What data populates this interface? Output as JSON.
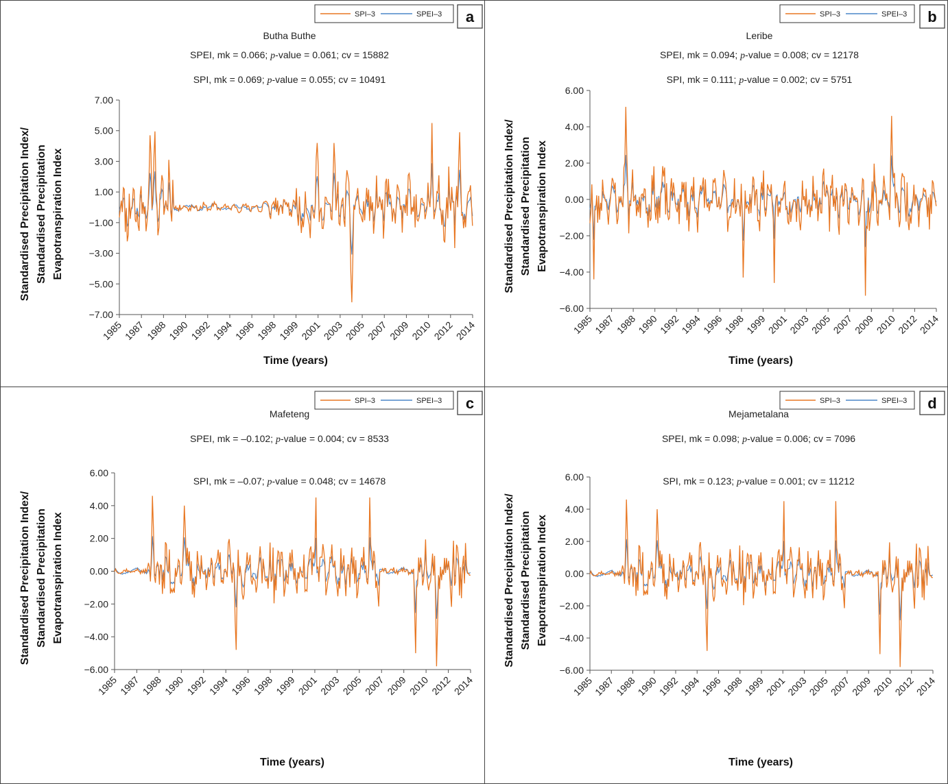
{
  "colors": {
    "spi": "#E87722",
    "spei": "#4A86C8",
    "axis": "#555555"
  },
  "chart_data": [
    {
      "type": "line",
      "letter": "a",
      "title": "Butha Buthe",
      "stat_lines": [
        {
          "pre": "SPEI, mk = 0.066; ",
          "p": "p",
          "post": "-value = 0.061; cv = 15882"
        },
        {
          "pre": "SPI, mk = 0.069; ",
          "p": "p",
          "post": "-value = 0.055; cv = 10491"
        }
      ],
      "ylabel": [
        "Standardised Precipitation Index/",
        "Standardised Precipitation",
        "Evapotranspiration Index"
      ],
      "xlabel": "Time (years)",
      "ylim": [
        -7,
        7
      ],
      "yticks": [
        "7.00",
        "5.00",
        "3.00",
        "1.00",
        "−1.00",
        "−3.00",
        "−5.00",
        "−7.00"
      ],
      "xticks": [
        "1985",
        "1987",
        "1988",
        "1990",
        "1992",
        "1994",
        "1996",
        "1998",
        "1999",
        "2001",
        "2003",
        "2005",
        "2007",
        "2009",
        "2010",
        "2012",
        "2014"
      ],
      "legend": [
        "SPI–3",
        "SPEI–3"
      ],
      "series": [
        {
          "name": "SPI–3",
          "seed": 11,
          "segments": [
            [
              1985,
              1989.5,
              2.6,
              3
            ],
            [
              1989.5,
              1996.5,
              0.35,
              1
            ],
            [
              1996.5,
              1999.8,
              0.9,
              2
            ],
            [
              1999.8,
              2008.2,
              2.3,
              3
            ],
            [
              2008.2,
              2014.8,
              2.7,
              3
            ]
          ],
          "peaks": [
            [
              1987.6,
              4.7
            ],
            [
              1988.0,
              4.95
            ],
            [
              1989.2,
              3.1
            ],
            [
              2001.7,
              4.2
            ],
            [
              2003.1,
              4.2
            ],
            [
              2004.6,
              -6.2
            ],
            [
              2011.3,
              5.5
            ],
            [
              2013.7,
              4.9
            ]
          ]
        },
        {
          "name": "SPEI–3",
          "seed": 11,
          "factor": 0.5
        }
      ]
    },
    {
      "type": "line",
      "letter": "b",
      "title": "Leribe",
      "stat_lines": [
        {
          "pre": "SPEI, mk = 0.094; ",
          "p": "p",
          "post": "-value = 0.008; cv = 12178"
        },
        {
          "pre": "SPI, mk = 0.111; ",
          "p": "p",
          "post": "-value = 0.002; cv = 5751"
        }
      ],
      "ylabel": [
        "Standardised Precipitation Index/",
        "Standardised Precipitation",
        "Evapotranspiration Index"
      ],
      "xlabel": "Time (years)",
      "ylim": [
        -6,
        6
      ],
      "yticks": [
        "6.00",
        "4.00",
        "2.00",
        "0.00",
        "−2.00",
        "−4.00",
        "−6.00"
      ],
      "xticks": [
        "1985",
        "1987",
        "1988",
        "1990",
        "1992",
        "1994",
        "1996",
        "1998",
        "1999",
        "2001",
        "2003",
        "2005",
        "2007",
        "2009",
        "2010",
        "2012",
        "2014"
      ],
      "legend": [
        "SPI–3",
        "SPEI–3"
      ],
      "series": [
        {
          "name": "SPI–3",
          "seed": 23,
          "segments": [
            [
              1985,
              2014.8,
              2.0,
              3
            ]
          ],
          "peaks": [
            [
              1985.3,
              -4.4
            ],
            [
              1988.1,
              5.1
            ],
            [
              2000.8,
              -4.6
            ],
            [
              2008.7,
              -5.3
            ],
            [
              2010.9,
              4.6
            ],
            [
              1998.2,
              -4.3
            ]
          ]
        },
        {
          "name": "SPEI–3",
          "seed": 23,
          "factor": 0.5
        }
      ]
    },
    {
      "type": "line",
      "letter": "c",
      "title": "Mafeteng",
      "stat_lines": [
        {
          "pre": "SPEI, mk = –0.102; ",
          "p": "p",
          "post": "-value =  0.004; cv = 8533"
        },
        {
          "pre": "SPI, mk = –0.07; ",
          "p": "p",
          "post": "-value =  0.048; cv = 14678"
        }
      ],
      "ylabel": [
        "Standardised Precipitation Index/",
        "Standardised Precipitation",
        "Evapotranspiration Index"
      ],
      "xlabel": "Time (years)",
      "ylim": [
        -6,
        6
      ],
      "yticks": [
        "6.00",
        "4.00",
        "2.00",
        "0.00",
        "−2.00",
        "−4.00",
        "−6.00"
      ],
      "xticks": [
        "1985",
        "1987",
        "1988",
        "1990",
        "1992",
        "1994",
        "1996",
        "1998",
        "1999",
        "2001",
        "2003",
        "2005",
        "2007",
        "2009",
        "2010",
        "2012",
        "2014"
      ],
      "legend": [
        "SPI–3",
        "SPEI–3"
      ],
      "series": [
        {
          "name": "SPI–3",
          "seed": 37,
          "segments": [
            [
              1985,
              1987.8,
              0.25,
              4
            ],
            [
              1987.8,
              2007.2,
              2.2,
              3
            ],
            [
              2007.2,
              2010.0,
              0.25,
              4
            ],
            [
              2010.0,
              2014.8,
              2.4,
              3
            ]
          ],
          "peaks": [
            [
              1988.2,
              4.6
            ],
            [
              1990.8,
              4.0
            ],
            [
              1995.2,
              -4.8
            ],
            [
              2001.8,
              4.5
            ],
            [
              2006.3,
              4.5
            ],
            [
              2011.9,
              -5.8
            ],
            [
              2010.2,
              -5.0
            ]
          ]
        },
        {
          "name": "SPEI–3",
          "seed": 37,
          "factor": 0.48
        }
      ]
    },
    {
      "type": "line",
      "letter": "d",
      "title": "Mejametalana",
      "stat_lines": [
        {
          "pre": "SPEI, mk = 0.098; ",
          "p": "p",
          "post": "-value = 0.006; cv = 7096"
        },
        {
          "pre": "SPI, mk = 0.123; ",
          "p": "p",
          "post": "-value = 0.001; cv = 11212"
        }
      ],
      "ylabel": [
        "Standardised Precipitation Index/",
        "Standardised Precipitation",
        "Evapotranspiration Index"
      ],
      "xlabel": "Time (years)",
      "ylim": [
        -6,
        6
      ],
      "yticks": [
        "6.00",
        "4.00",
        "2.00",
        "0.00",
        "−2.00",
        "−4.00",
        "−6.00"
      ],
      "xticks": [
        "1985",
        "1987",
        "1988",
        "1990",
        "1992",
        "1994",
        "1996",
        "1998",
        "1999",
        "2001",
        "2003",
        "2005",
        "2007",
        "2009",
        "2010",
        "2012",
        "2014"
      ],
      "legend": [
        "SPI–3",
        "SPEI–3"
      ],
      "series": [
        {
          "name": "SPI–3",
          "seed": 37,
          "segments": [
            [
              1985,
              1987.8,
              0.25,
              4
            ],
            [
              1987.8,
              2007.2,
              2.2,
              3
            ],
            [
              2007.2,
              2010.0,
              0.25,
              4
            ],
            [
              2010.0,
              2014.8,
              2.4,
              3
            ]
          ],
          "peaks": [
            [
              1988.2,
              4.6
            ],
            [
              1990.8,
              4.0
            ],
            [
              1995.2,
              -4.8
            ],
            [
              2001.8,
              4.5
            ],
            [
              2006.3,
              4.5
            ],
            [
              2011.9,
              -5.8
            ],
            [
              2010.2,
              -5.0
            ]
          ]
        },
        {
          "name": "SPEI–3",
          "seed": 37,
          "factor": 0.48
        }
      ]
    }
  ]
}
